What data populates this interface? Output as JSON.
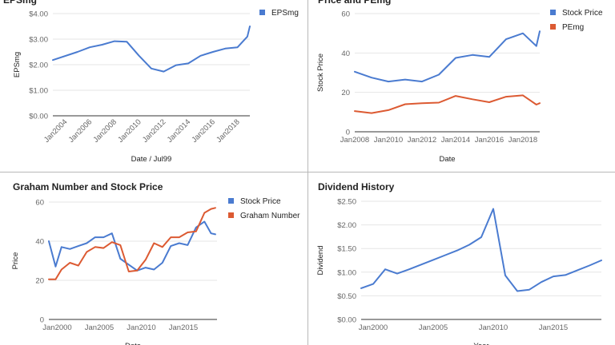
{
  "colors": {
    "blue": "#4a7bd0",
    "orange": "#dc5a32",
    "grid": "#e6e6e6",
    "axis": "#333333"
  },
  "chart_data": [
    {
      "type": "line",
      "title": "EPSmg",
      "xlabel": "Date / Jul99",
      "ylabel": "EPSmg",
      "xlim": [
        2003.0,
        2019.0
      ],
      "ylim": [
        0,
        4
      ],
      "yticks": [
        0,
        1,
        2,
        3,
        4
      ],
      "ytick_labels": [
        "$0.00",
        "$1.00",
        "$2.00",
        "$3.00",
        "$4.00"
      ],
      "xticks": [
        2004,
        2006,
        2008,
        2010,
        2012,
        2014,
        2016,
        2018
      ],
      "xtick_labels": [
        "Jan2004",
        "Jan2006",
        "Jan2008",
        "Jan2010",
        "Jan2012",
        "Jan2014",
        "Jan2016",
        "Jan2018"
      ],
      "rotate_x": true,
      "legend_position": "right",
      "series": [
        {
          "name": "EPSmg",
          "color": "#4a7bd0",
          "x": [
            2003.0,
            2005.0,
            2006.0,
            2007.0,
            2008.0,
            2009.0,
            2010.0,
            2011.0,
            2012.0,
            2013.0,
            2014.0,
            2015.0,
            2016.0,
            2017.0,
            2018.0,
            2018.8,
            2019.0
          ],
          "y": [
            2.18,
            2.5,
            2.68,
            2.78,
            2.92,
            2.9,
            2.35,
            1.85,
            1.73,
            1.98,
            2.05,
            2.35,
            2.5,
            2.63,
            2.68,
            3.1,
            3.5
          ]
        }
      ]
    },
    {
      "type": "line",
      "title": "Price and PEmg",
      "xlabel": "Date",
      "ylabel": "Stock Price",
      "xlim": [
        2008.0,
        2019.0
      ],
      "ylim": [
        0,
        60
      ],
      "yticks": [
        0,
        20,
        40,
        60
      ],
      "ytick_labels": [
        "0",
        "20",
        "40",
        "60"
      ],
      "xticks": [
        2008,
        2010,
        2012,
        2014,
        2016,
        2018
      ],
      "xtick_labels": [
        "Jan2008",
        "Jan2010",
        "Jan2012",
        "Jan2014",
        "Jan2016",
        "Jan2018"
      ],
      "rotate_x": false,
      "legend_position": "right",
      "series": [
        {
          "name": "Stock Price",
          "color": "#4a7bd0",
          "x": [
            2008.0,
            2009.0,
            2010.0,
            2011.0,
            2012.0,
            2013.0,
            2014.0,
            2015.0,
            2016.0,
            2017.0,
            2018.0,
            2018.8,
            2019.0
          ],
          "y": [
            30.5,
            27.5,
            25.5,
            26.5,
            25.5,
            29.0,
            37.5,
            39.0,
            38.0,
            47.0,
            50.0,
            43.5,
            51.0
          ]
        },
        {
          "name": "PEmg",
          "color": "#dc5a32",
          "x": [
            2008.0,
            2009.0,
            2010.0,
            2011.0,
            2012.0,
            2013.0,
            2014.0,
            2015.0,
            2016.0,
            2017.0,
            2018.0,
            2018.8,
            2019.0
          ],
          "y": [
            10.5,
            9.5,
            11.0,
            14.0,
            14.5,
            14.8,
            18.2,
            16.5,
            15.0,
            17.8,
            18.5,
            13.8,
            14.5
          ]
        }
      ]
    },
    {
      "type": "line",
      "title": "Graham Number and Stock Price",
      "xlabel": "Date",
      "ylabel": "Price",
      "xlim": [
        1999.0,
        2019.0
      ],
      "ylim": [
        0,
        60
      ],
      "yticks": [
        0,
        20,
        40,
        60
      ],
      "ytick_labels": [
        "0",
        "20",
        "40",
        "60"
      ],
      "xticks": [
        2000,
        2005,
        2010,
        2015
      ],
      "xtick_labels": [
        "Jan2000",
        "Jan2005",
        "Jan2010",
        "Jan2015"
      ],
      "rotate_x": false,
      "legend_position": "right",
      "series": [
        {
          "name": "Stock Price",
          "color": "#4a7bd0",
          "x": [
            1999.0,
            1999.8,
            2000.5,
            2001.5,
            2002.5,
            2003.5,
            2004.5,
            2005.5,
            2006.5,
            2007.5,
            2008.5,
            2009.5,
            2010.5,
            2011.5,
            2012.5,
            2013.5,
            2014.5,
            2015.5,
            2016.5,
            2017.5,
            2018.3,
            2018.8
          ],
          "y": [
            40.0,
            27.0,
            37.0,
            36.0,
            37.5,
            39.0,
            42.0,
            42.0,
            44.0,
            31.0,
            28.0,
            25.0,
            26.5,
            25.5,
            29.0,
            37.5,
            39.0,
            38.0,
            47.0,
            50.0,
            44.0,
            43.5
          ]
        },
        {
          "name": "Graham Number",
          "color": "#dc5a32",
          "x": [
            1999.0,
            1999.8,
            2000.5,
            2001.5,
            2002.5,
            2003.5,
            2004.5,
            2005.5,
            2006.5,
            2007.5,
            2008.5,
            2009.5,
            2010.5,
            2011.5,
            2012.5,
            2013.5,
            2014.5,
            2015.5,
            2016.5,
            2017.5,
            2018.3,
            2018.8
          ],
          "y": [
            20.5,
            20.5,
            25.5,
            29.0,
            27.5,
            34.5,
            37.0,
            36.5,
            39.5,
            38.0,
            24.5,
            25.0,
            30.5,
            39.0,
            37.0,
            42.0,
            42.0,
            44.5,
            45.0,
            54.5,
            56.5,
            57.0
          ]
        }
      ]
    },
    {
      "type": "line",
      "title": "Dividend History",
      "xlabel": "Year",
      "ylabel": "Dividend",
      "xlim": [
        1999.0,
        2019.0
      ],
      "ylim": [
        0,
        2.5
      ],
      "yticks": [
        0,
        0.5,
        1,
        1.5,
        2,
        2.5
      ],
      "ytick_labels": [
        "$0.00",
        "$0.50",
        "$1.00",
        "$1.50",
        "$2.00",
        "$2.50"
      ],
      "xticks": [
        2000,
        2005,
        2010,
        2015
      ],
      "xtick_labels": [
        "Jan2000",
        "Jan2005",
        "Jan2010",
        "Jan2015"
      ],
      "rotate_x": false,
      "legend_position": "none",
      "series": [
        {
          "name": "",
          "color": "#4a7bd0",
          "x": [
            1999.0,
            2000.0,
            2001.0,
            2002.0,
            2003.0,
            2004.0,
            2005.0,
            2006.0,
            2007.0,
            2008.0,
            2009.0,
            2010.0,
            2011.0,
            2012.0,
            2013.0,
            2014.0,
            2015.0,
            2016.0,
            2017.0,
            2018.0,
            2019.0
          ],
          "y": [
            0.66,
            0.75,
            1.06,
            0.97,
            1.06,
            1.16,
            1.26,
            1.36,
            1.46,
            1.58,
            1.74,
            2.34,
            0.93,
            0.6,
            0.63,
            0.79,
            0.91,
            0.94,
            1.04,
            1.14,
            1.25
          ]
        }
      ]
    }
  ]
}
